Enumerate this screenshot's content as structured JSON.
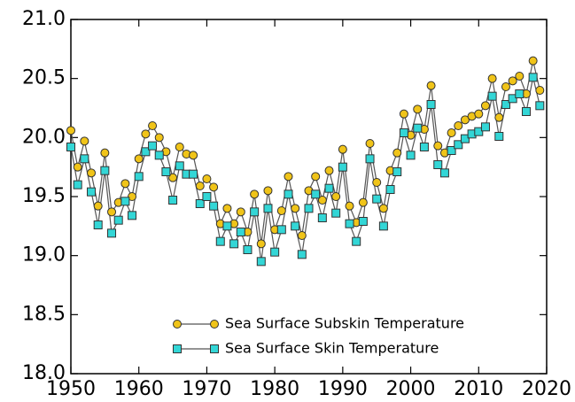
{
  "chart_data": {
    "type": "line",
    "x": [
      1950,
      1951,
      1952,
      1953,
      1954,
      1955,
      1956,
      1957,
      1958,
      1959,
      1960,
      1961,
      1962,
      1963,
      1964,
      1965,
      1966,
      1967,
      1968,
      1969,
      1970,
      1971,
      1972,
      1973,
      1974,
      1975,
      1976,
      1977,
      1978,
      1979,
      1980,
      1981,
      1982,
      1983,
      1984,
      1985,
      1986,
      1987,
      1988,
      1989,
      1990,
      1991,
      1992,
      1993,
      1994,
      1995,
      1996,
      1997,
      1998,
      1999,
      2000,
      2001,
      2002,
      2003,
      2004,
      2005,
      2006,
      2007,
      2008,
      2009,
      2010,
      2011,
      2012,
      2013,
      2014,
      2015,
      2016,
      2017,
      2018,
      2019
    ],
    "series": [
      {
        "name": "Sea Surface Subskin Temperature",
        "color": "#f0c419",
        "marker": "circle",
        "values": [
          20.06,
          19.75,
          19.97,
          19.7,
          19.42,
          19.87,
          19.37,
          19.45,
          19.61,
          19.5,
          19.82,
          20.03,
          20.1,
          20.0,
          19.88,
          19.66,
          19.92,
          19.86,
          19.85,
          19.59,
          19.65,
          19.58,
          19.27,
          19.4,
          19.27,
          19.37,
          19.2,
          19.52,
          19.1,
          19.55,
          19.22,
          19.38,
          19.67,
          19.4,
          19.17,
          19.55,
          19.67,
          19.47,
          19.72,
          19.5,
          19.9,
          19.42,
          19.28,
          19.45,
          19.95,
          19.62,
          19.4,
          19.72,
          19.87,
          20.2,
          20.02,
          20.24,
          20.07,
          20.44,
          19.93,
          19.87,
          20.04,
          20.1,
          20.15,
          20.18,
          20.2,
          20.27,
          20.5,
          20.17,
          20.43,
          20.48,
          20.52,
          20.37,
          20.65,
          20.4
        ]
      },
      {
        "name": "Sea Surface Skin Temperature",
        "color": "#33d6d6",
        "marker": "square",
        "values": [
          19.92,
          19.6,
          19.82,
          19.54,
          19.26,
          19.72,
          19.19,
          19.3,
          19.46,
          19.34,
          19.67,
          19.88,
          19.93,
          19.85,
          19.71,
          19.47,
          19.76,
          19.69,
          19.69,
          19.44,
          19.5,
          19.42,
          19.12,
          19.25,
          19.1,
          19.2,
          19.05,
          19.37,
          18.95,
          19.4,
          19.03,
          19.22,
          19.52,
          19.25,
          19.01,
          19.4,
          19.52,
          19.32,
          19.57,
          19.36,
          19.75,
          19.27,
          19.12,
          19.29,
          19.82,
          19.48,
          19.25,
          19.56,
          19.71,
          20.04,
          19.85,
          20.08,
          19.92,
          20.28,
          19.77,
          19.7,
          19.89,
          19.94,
          19.99,
          20.03,
          20.05,
          20.09,
          20.35,
          20.01,
          20.28,
          20.33,
          20.37,
          20.22,
          20.51,
          20.27
        ]
      }
    ],
    "line_color": "#555555",
    "xlim": [
      1950,
      2020
    ],
    "xticks": [
      1950,
      1960,
      1970,
      1980,
      1990,
      2000,
      2010,
      2020
    ],
    "ylim": [
      18,
      21
    ],
    "yticks": [
      {
        "value": 18,
        "label": "18.0"
      },
      {
        "value": 18.5,
        "label": "18.5"
      },
      {
        "value": 19,
        "label": "19.0"
      },
      {
        "value": 19.5,
        "label": "19.5"
      },
      {
        "value": 20,
        "label": "20.0"
      },
      {
        "value": 20.5,
        "label": "20.5"
      },
      {
        "value": 21,
        "label": "21.0"
      }
    ],
    "grid": false,
    "legend": "lower center"
  }
}
